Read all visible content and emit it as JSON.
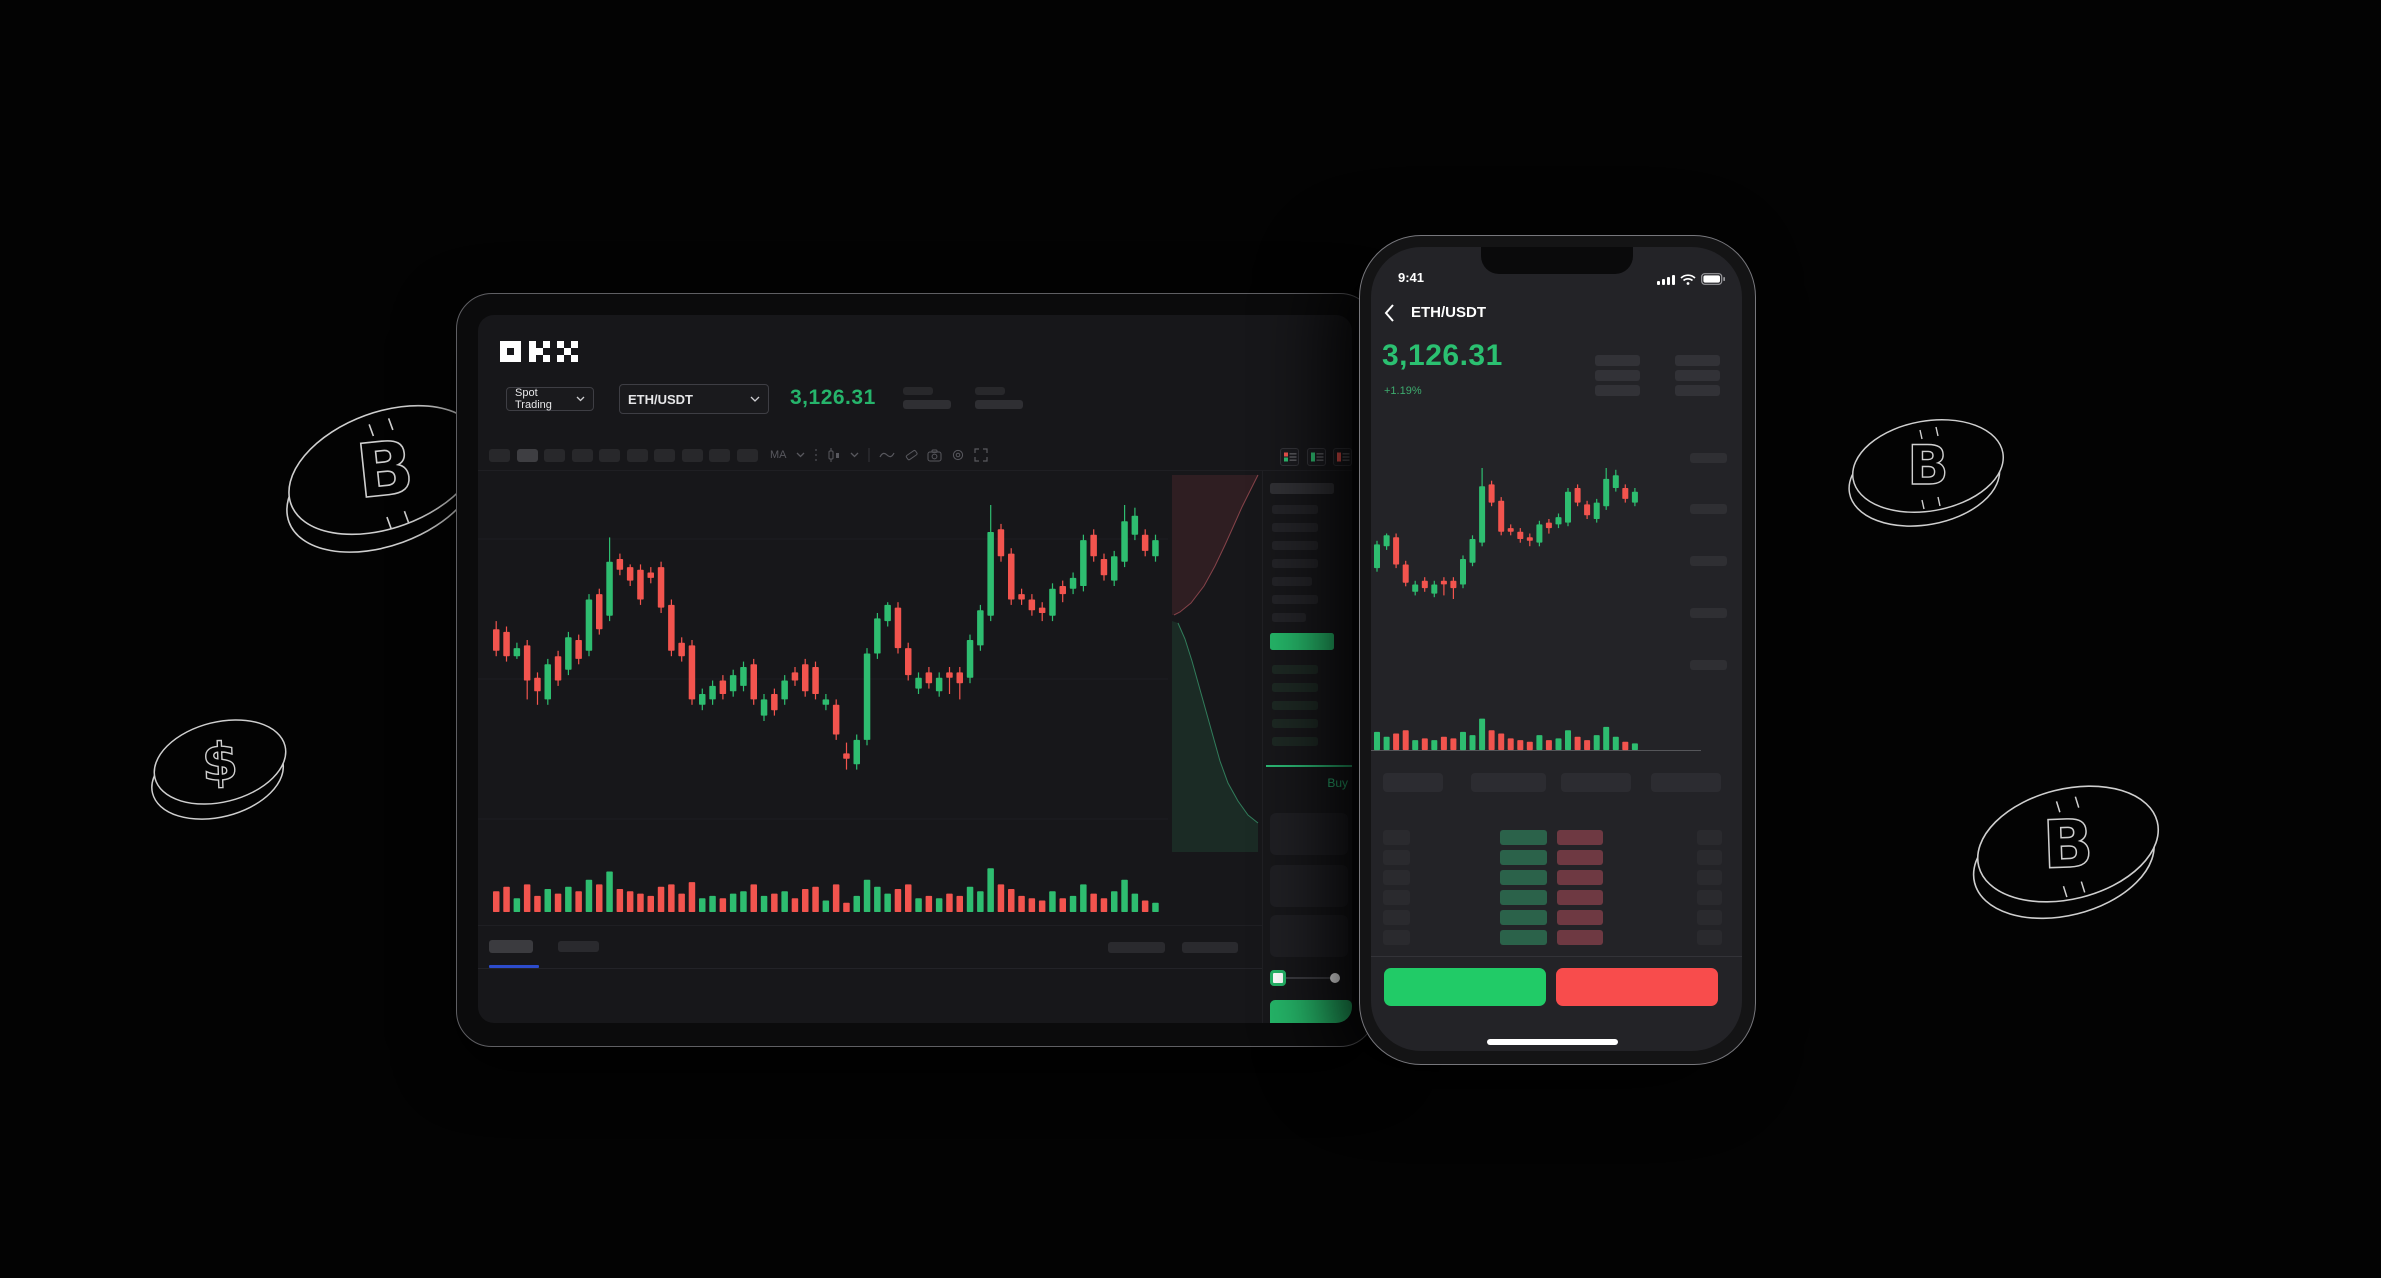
{
  "colors": {
    "green": "#2ebd70",
    "red": "#f2544e",
    "btn_green": "#21cb67",
    "btn_red": "#f84c4c",
    "ob_green": "#2b624a",
    "ob_red": "#6e3942",
    "accent_blue": "#2d4ccc",
    "price_green": "#26b46b",
    "panel_green": "#25b568",
    "buy_green": "#2bb673"
  },
  "tablet": {
    "logo": "OKX",
    "header": {
      "market_dropdown": "Spot Trading",
      "pair_dropdown": "ETH/USDT",
      "price": "3,126.31"
    },
    "toolbar": {
      "ma_label": "MA"
    },
    "order_panel": {
      "buy_label": "Buy"
    },
    "icons": [
      "list-both-icon",
      "list-bids-icon",
      "list-asks-icon",
      "ma-indicator",
      "chevron-down-icon",
      "candle-style-icon",
      "wave-icon",
      "tag-icon",
      "camera-icon",
      "gear-icon",
      "expand-icon"
    ]
  },
  "phone": {
    "status": {
      "time": "9:41",
      "icons": [
        "signal-icon",
        "wifi-icon",
        "battery-icon"
      ]
    },
    "header": {
      "back_icon": "chevron-left-icon",
      "pair": "ETH/USDT"
    },
    "price": "3,126.31",
    "change": "+1.19%"
  },
  "coins": [
    "bitcoin-coin",
    "dollar-coin",
    "bitcoin-coin",
    "bitcoin-coin"
  ],
  "chart_data": {
    "type": "candlestick",
    "pair": "ETH/USDT",
    "last_price": 3126.31,
    "change_pct": "+1.19%",
    "note": "values normalized 0-100 of visible price range; candles as [open,close,high,low]",
    "candles": [
      [
        54,
        46,
        57,
        44
      ],
      [
        53,
        44,
        55,
        42
      ],
      [
        44,
        47,
        49,
        43
      ],
      [
        48,
        35,
        50,
        28
      ],
      [
        36,
        31,
        38,
        26
      ],
      [
        28,
        41,
        43,
        26
      ],
      [
        44,
        35,
        46,
        33
      ],
      [
        39,
        51,
        53,
        37
      ],
      [
        50,
        43,
        52,
        41
      ],
      [
        46,
        65,
        67,
        44
      ],
      [
        67,
        54,
        69,
        52
      ],
      [
        59,
        79,
        88,
        57
      ],
      [
        80,
        76,
        82,
        74
      ],
      [
        77,
        72,
        78,
        70
      ],
      [
        76,
        65,
        78,
        63
      ],
      [
        75,
        73,
        77,
        71
      ],
      [
        77,
        62,
        79,
        60
      ],
      [
        63,
        46,
        65,
        44
      ],
      [
        49,
        44,
        51,
        42
      ],
      [
        48,
        28,
        50,
        26
      ],
      [
        26,
        30,
        32,
        24
      ],
      [
        28,
        33,
        35,
        26
      ],
      [
        35,
        30,
        37,
        28
      ],
      [
        31,
        37,
        39,
        29
      ],
      [
        33,
        40,
        42,
        31
      ],
      [
        41,
        28,
        43,
        26
      ],
      [
        22,
        28,
        30,
        20
      ],
      [
        30,
        24,
        32,
        22
      ],
      [
        28,
        35,
        37,
        26
      ],
      [
        38,
        35,
        40,
        33
      ],
      [
        41,
        31,
        43,
        29
      ],
      [
        40,
        30,
        42,
        28
      ],
      [
        26,
        28,
        30,
        24
      ],
      [
        26,
        15,
        28,
        13
      ],
      [
        8,
        6,
        12,
        2
      ],
      [
        4,
        13,
        15,
        2
      ],
      [
        13,
        45,
        47,
        11
      ],
      [
        45,
        58,
        60,
        43
      ],
      [
        57,
        63,
        64,
        55
      ],
      [
        62,
        47,
        64,
        45
      ],
      [
        47,
        37,
        49,
        35
      ],
      [
        32,
        36,
        38,
        30
      ],
      [
        38,
        34,
        40,
        32
      ],
      [
        31,
        36,
        38,
        29
      ],
      [
        38,
        36,
        40,
        30
      ],
      [
        38,
        34,
        40,
        28
      ],
      [
        36,
        50,
        52,
        34
      ],
      [
        48,
        61,
        63,
        46
      ],
      [
        59,
        90,
        100,
        57
      ],
      [
        91,
        81,
        93,
        79
      ],
      [
        82,
        65,
        84,
        63
      ],
      [
        67,
        65,
        69,
        63
      ],
      [
        65,
        61,
        67,
        59
      ],
      [
        62,
        60,
        64,
        57
      ],
      [
        59,
        69,
        71,
        57
      ],
      [
        70,
        67,
        72,
        64
      ],
      [
        69,
        73,
        75,
        67
      ],
      [
        70,
        87,
        89,
        68
      ],
      [
        89,
        81,
        91,
        79
      ],
      [
        80,
        74,
        82,
        72
      ],
      [
        72,
        81,
        83,
        70
      ],
      [
        79,
        94,
        100,
        77
      ],
      [
        89,
        96,
        99,
        87
      ],
      [
        89,
        83,
        91,
        81
      ],
      [
        81,
        87,
        89,
        79
      ]
    ],
    "volumes": [
      45,
      55,
      30,
      60,
      35,
      50,
      40,
      55,
      45,
      70,
      60,
      88,
      50,
      45,
      40,
      35,
      55,
      60,
      40,
      65,
      30,
      35,
      30,
      40,
      45,
      60,
      35,
      40,
      45,
      30,
      50,
      55,
      25,
      60,
      20,
      35,
      70,
      55,
      40,
      50,
      60,
      30,
      35,
      30,
      40,
      35,
      55,
      45,
      95,
      60,
      50,
      35,
      30,
      25,
      45,
      30,
      35,
      60,
      40,
      30,
      45,
      70,
      40,
      25,
      20
    ],
    "phone_visible_candles": 28,
    "depth": {
      "asks_side": "top-red",
      "bids_side": "bottom-green"
    },
    "grid": "faint horizontal lines"
  }
}
